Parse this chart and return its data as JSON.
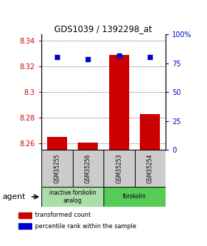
{
  "title": "GDS1039 / 1392298_at",
  "samples": [
    "GSM35255",
    "GSM35256",
    "GSM35253",
    "GSM35254"
  ],
  "transformed_counts": [
    8.265,
    8.261,
    8.329,
    8.283
  ],
  "percentile_ranks": [
    80.5,
    78.5,
    81.5,
    80.5
  ],
  "ylim_left": [
    8.255,
    8.345
  ],
  "ylim_right": [
    0,
    100
  ],
  "yticks_left": [
    8.26,
    8.28,
    8.3,
    8.32,
    8.34
  ],
  "ytick_labels_left": [
    "8.26",
    "8.28",
    "8.3",
    "8.32",
    "8.34"
  ],
  "yticks_right": [
    0,
    25,
    50,
    75,
    100
  ],
  "ytick_labels_right": [
    "0",
    "25",
    "50",
    "75",
    "100%"
  ],
  "bar_color": "#cc0000",
  "dot_color": "#0000cc",
  "bar_width": 0.65,
  "groups": [
    {
      "label": "inactive forskolin\nanalog",
      "samples": [
        0,
        1
      ],
      "color": "#aaddaa"
    },
    {
      "label": "forskolin",
      "samples": [
        2,
        3
      ],
      "color": "#55cc55"
    }
  ],
  "agent_label": "agent",
  "legend_items": [
    {
      "color": "#cc0000",
      "label": "transformed count"
    },
    {
      "color": "#0000cc",
      "label": "percentile rank within the sample"
    }
  ],
  "axis_color_left": "#cc0000",
  "axis_color_right": "#0000cc",
  "background_samples": "#cccccc"
}
